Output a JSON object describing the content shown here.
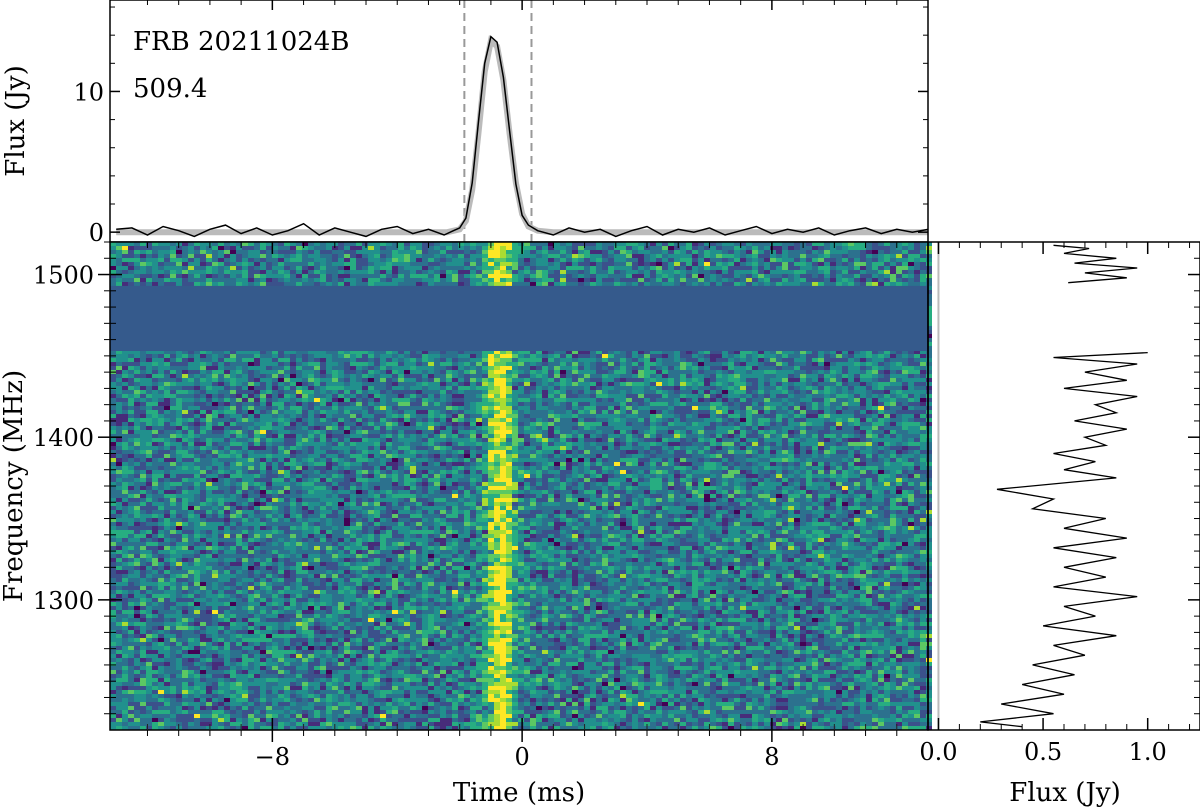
{
  "chart_data": [
    {
      "panel": "profile",
      "type": "line",
      "annotations": [
        "FRB 20211024B",
        "509.4"
      ],
      "xlabel": "",
      "ylabel": "Flux (Jy)",
      "xlim": [
        -13.2,
        13.0
      ],
      "ylim": [
        -0.7,
        16.5
      ],
      "yticks": [
        0,
        10
      ],
      "ytick_labels": [
        "0",
        "10"
      ],
      "series": [
        {
          "role": "data",
          "points": [
            [
              -13.0,
              0.2
            ],
            [
              -12.5,
              0.3
            ],
            [
              -12.0,
              -0.2
            ],
            [
              -11.5,
              0.4
            ],
            [
              -11.0,
              0.1
            ],
            [
              -10.5,
              -0.3
            ],
            [
              -10.0,
              0.2
            ],
            [
              -9.5,
              0.5
            ],
            [
              -9.0,
              -0.1
            ],
            [
              -8.5,
              0.3
            ],
            [
              -8.0,
              -0.2
            ],
            [
              -7.5,
              0.1
            ],
            [
              -7.0,
              0.6
            ],
            [
              -6.5,
              -0.2
            ],
            [
              -6.0,
              0.3
            ],
            [
              -5.5,
              0.0
            ],
            [
              -5.0,
              -0.3
            ],
            [
              -4.5,
              0.2
            ],
            [
              -4.0,
              0.4
            ],
            [
              -3.5,
              -0.1
            ],
            [
              -3.0,
              0.2
            ],
            [
              -2.5,
              -0.2
            ],
            [
              -2.2,
              0.1
            ],
            [
              -2.0,
              0.3
            ],
            [
              -1.8,
              1.0
            ],
            [
              -1.6,
              3.5
            ],
            [
              -1.4,
              7.8
            ],
            [
              -1.2,
              12.0
            ],
            [
              -1.0,
              13.9
            ],
            [
              -0.8,
              13.5
            ],
            [
              -0.6,
              11.0
            ],
            [
              -0.4,
              7.2
            ],
            [
              -0.2,
              3.4
            ],
            [
              0.0,
              1.2
            ],
            [
              0.2,
              0.5
            ],
            [
              0.5,
              0.1
            ],
            [
              1.0,
              -0.2
            ],
            [
              1.5,
              0.3
            ],
            [
              2.0,
              0.0
            ],
            [
              2.5,
              0.2
            ],
            [
              3.0,
              -0.3
            ],
            [
              3.5,
              0.1
            ],
            [
              4.0,
              0.4
            ],
            [
              4.5,
              -0.2
            ],
            [
              5.0,
              0.2
            ],
            [
              5.5,
              0.0
            ],
            [
              6.0,
              0.3
            ],
            [
              6.5,
              -0.2
            ],
            [
              7.0,
              0.1
            ],
            [
              7.5,
              0.4
            ],
            [
              8.0,
              -0.1
            ],
            [
              8.5,
              0.2
            ],
            [
              9.0,
              0.0
            ],
            [
              9.5,
              0.3
            ],
            [
              10.0,
              -0.2
            ],
            [
              10.5,
              0.1
            ],
            [
              11.0,
              0.3
            ],
            [
              11.5,
              -0.1
            ],
            [
              12.0,
              0.2
            ],
            [
              12.5,
              0.0
            ],
            [
              13.0,
              0.2
            ]
          ]
        },
        {
          "role": "model",
          "points": [
            [
              -13.0,
              0.0
            ],
            [
              -2.4,
              0.0
            ],
            [
              -2.0,
              0.2
            ],
            [
              -1.8,
              0.8
            ],
            [
              -1.6,
              3.0
            ],
            [
              -1.4,
              7.0
            ],
            [
              -1.2,
              11.4
            ],
            [
              -1.0,
              13.6
            ],
            [
              -0.8,
              13.2
            ],
            [
              -0.6,
              10.8
            ],
            [
              -0.4,
              7.0
            ],
            [
              -0.2,
              3.5
            ],
            [
              0.0,
              1.3
            ],
            [
              0.2,
              0.4
            ],
            [
              0.5,
              0.1
            ],
            [
              1.0,
              0.0
            ],
            [
              13.0,
              0.0
            ]
          ]
        }
      ],
      "vlines": [
        -1.85,
        0.3
      ],
      "vline_style": "dashed",
      "colors": {
        "data": "#000000",
        "model": "#bbbbbb",
        "vline": "#999999"
      }
    },
    {
      "panel": "dynamic_spectrum",
      "type": "heatmap",
      "xlabel": "Time (ms)",
      "ylabel": "Frequency (MHz)",
      "xlim": [
        -13.2,
        13.0
      ],
      "ylim": [
        1220,
        1520
      ],
      "xticks": [
        -8,
        0,
        8
      ],
      "xtick_labels": [
        "−8",
        "0",
        "8"
      ],
      "yticks": [
        1300,
        1400,
        1500
      ],
      "ytick_labels": [
        "1300",
        "1400",
        "1500"
      ],
      "masked_band_mhz": [
        1453,
        1493
      ],
      "burst_time_ms": [
        -1.2,
        -0.2
      ],
      "colormap": "viridis",
      "colors": {
        "mask": "#355a8c",
        "background": "#2c6e8e",
        "burst": "#d8e219"
      }
    },
    {
      "panel": "spectrum",
      "type": "line",
      "xlabel": "Flux (Jy)",
      "ylabel": "",
      "xlim": [
        -0.05,
        1.25
      ],
      "ylim": [
        1220,
        1520
      ],
      "xticks": [
        0.0,
        0.5,
        1.0
      ],
      "xtick_labels": [
        "0.0",
        "0.5",
        "1.0"
      ],
      "zero_line_color": "#bbbbbb",
      "series": [
        {
          "role": "data",
          "points": [
            [
              0.55,
              1518
            ],
            [
              0.72,
              1516
            ],
            [
              0.6,
              1513
            ],
            [
              0.85,
              1510
            ],
            [
              0.65,
              1507
            ],
            [
              0.95,
              1504
            ],
            [
              0.7,
              1501
            ],
            [
              0.9,
              1498
            ],
            [
              0.62,
              1495
            ],
            [
              1.0,
              1452
            ],
            [
              0.55,
              1449
            ],
            [
              0.95,
              1445
            ],
            [
              0.7,
              1440
            ],
            [
              0.9,
              1435
            ],
            [
              0.6,
              1430
            ],
            [
              0.95,
              1425
            ],
            [
              0.75,
              1420
            ],
            [
              0.85,
              1415
            ],
            [
              0.65,
              1410
            ],
            [
              0.9,
              1405
            ],
            [
              0.7,
              1400
            ],
            [
              0.8,
              1395
            ],
            [
              0.55,
              1390
            ],
            [
              0.75,
              1385
            ],
            [
              0.6,
              1380
            ],
            [
              0.85,
              1375
            ],
            [
              0.28,
              1368
            ],
            [
              0.55,
              1362
            ],
            [
              0.45,
              1356
            ],
            [
              0.8,
              1350
            ],
            [
              0.6,
              1344
            ],
            [
              0.9,
              1338
            ],
            [
              0.55,
              1332
            ],
            [
              0.85,
              1326
            ],
            [
              0.6,
              1320
            ],
            [
              0.8,
              1314
            ],
            [
              0.55,
              1308
            ],
            [
              0.95,
              1302
            ],
            [
              0.6,
              1296
            ],
            [
              0.75,
              1290
            ],
            [
              0.5,
              1284
            ],
            [
              0.85,
              1278
            ],
            [
              0.55,
              1272
            ],
            [
              0.7,
              1266
            ],
            [
              0.45,
              1260
            ],
            [
              0.65,
              1254
            ],
            [
              0.4,
              1248
            ],
            [
              0.6,
              1242
            ],
            [
              0.3,
              1236
            ],
            [
              0.55,
              1230
            ],
            [
              0.2,
              1225
            ],
            [
              0.4,
              1222
            ]
          ]
        }
      ],
      "colors": {
        "data": "#000000"
      }
    }
  ]
}
